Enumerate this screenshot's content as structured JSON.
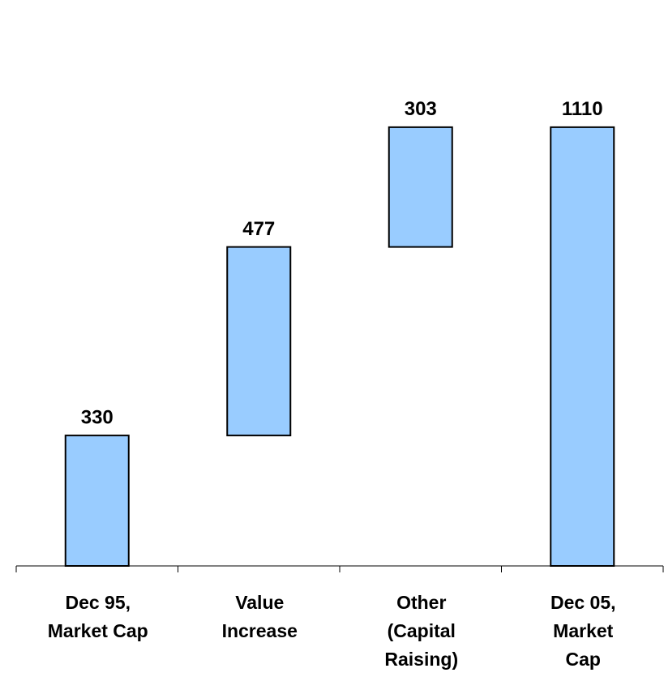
{
  "chart_data": {
    "type": "waterfall",
    "categories": [
      [
        "Dec 95,",
        "Market Cap"
      ],
      [
        "Value",
        "Increase"
      ],
      [
        "Other",
        "(Capital",
        "Raising)"
      ],
      [
        "Dec 05,",
        "Market",
        "Cap"
      ]
    ],
    "values": [
      330,
      477,
      303,
      1110
    ],
    "measure": [
      "absolute",
      "relative",
      "relative",
      "total"
    ],
    "color": "#99ccff",
    "ylim": [
      0,
      1200
    ]
  }
}
